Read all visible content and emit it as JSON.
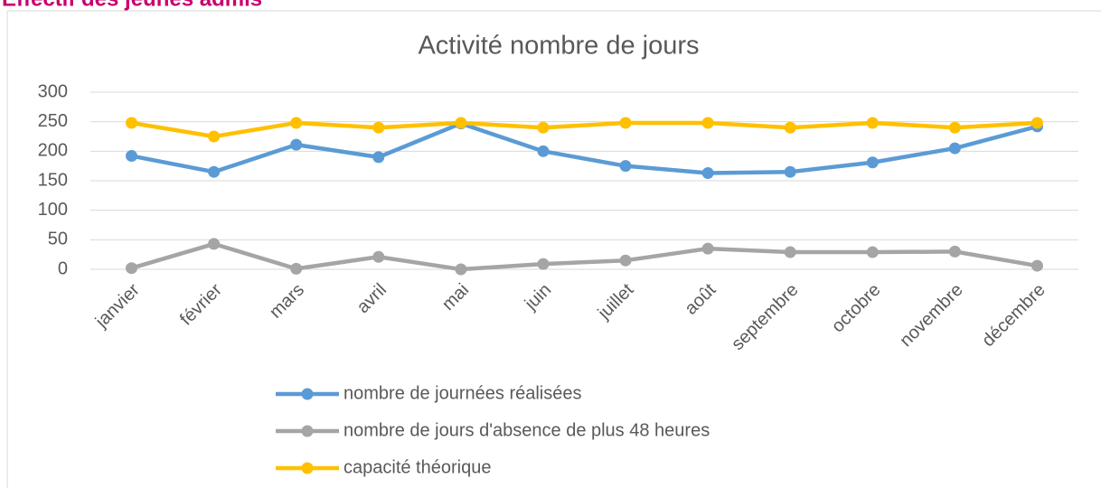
{
  "header": {
    "title": "Effectif des jeunes admis"
  },
  "chart_data": {
    "type": "line",
    "title": "Activité nombre de jours",
    "categories": [
      "janvier",
      "février",
      "mars",
      "avril",
      "mai",
      "juin",
      "juillet",
      "août",
      "septembre",
      "octobre",
      "novembre",
      "décembre"
    ],
    "series": [
      {
        "name": "nombre de journées réalisées",
        "color": "#5b9bd5",
        "values": [
          192,
          165,
          211,
          190,
          247,
          200,
          175,
          163,
          165,
          181,
          205,
          242
        ]
      },
      {
        "name": "nombre de jours d'absence de plus 48 heures",
        "color": "#a5a5a5",
        "values": [
          2,
          43,
          1,
          21,
          0,
          9,
          15,
          35,
          29,
          29,
          30,
          6
        ]
      },
      {
        "name": "capacité théorique",
        "color": "#ffc000",
        "values": [
          248,
          225,
          248,
          240,
          248,
          240,
          248,
          248,
          240,
          248,
          240,
          248
        ]
      }
    ],
    "ylim": [
      0,
      300
    ],
    "yticks": [
      0,
      50,
      100,
      150,
      200,
      250,
      300
    ],
    "grid": true,
    "legend": "bottom"
  }
}
